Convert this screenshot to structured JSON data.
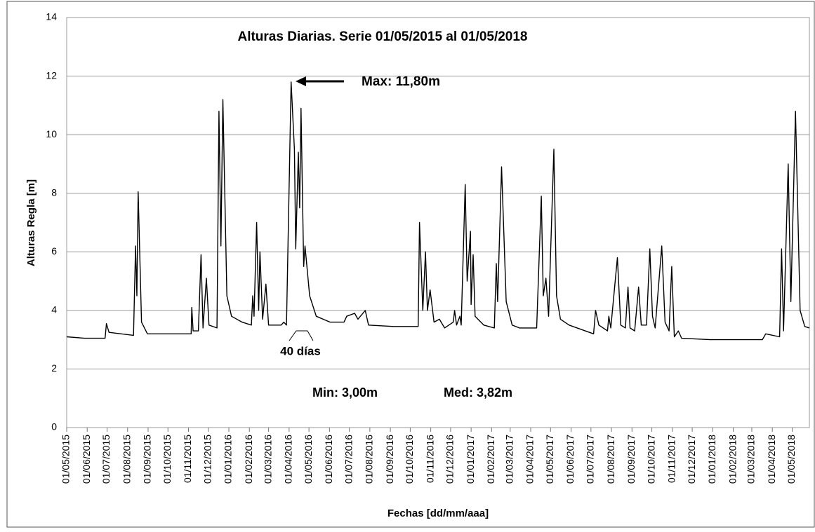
{
  "chart_data": {
    "type": "line",
    "title": "Alturas Diarias. Serie 01/05/2015 al 01/05/2018",
    "x_label": "Fechas [dd/mm/aaa]",
    "y_label": "Alturas Regla [m]",
    "annotations": {
      "max": "Max: 11,80m",
      "min": "Min: 3,00m",
      "med": "Med: 3,82m",
      "window": "40 días"
    },
    "color": "#000000",
    "grid": true,
    "ylim": [
      0,
      14
    ],
    "yticks": [
      0,
      2,
      4,
      6,
      8,
      10,
      12,
      14
    ],
    "xlim": [
      "2015-05-01",
      "2018-05-27"
    ],
    "xticks": [
      {
        "value": "2015-05-01",
        "label": "01/05/2015"
      },
      {
        "value": "2015-06-01",
        "label": "01/06/2015"
      },
      {
        "value": "2015-07-01",
        "label": "01/07/2015"
      },
      {
        "value": "2015-08-01",
        "label": "01/08/2015"
      },
      {
        "value": "2015-09-01",
        "label": "01/09/2015"
      },
      {
        "value": "2015-10-01",
        "label": "01/10/2015"
      },
      {
        "value": "2015-11-01",
        "label": "01/11/2015"
      },
      {
        "value": "2015-12-01",
        "label": "01/12/2015"
      },
      {
        "value": "2016-01-01",
        "label": "01/01/2016"
      },
      {
        "value": "2016-02-01",
        "label": "01/02/2016"
      },
      {
        "value": "2016-03-01",
        "label": "01/03/2016"
      },
      {
        "value": "2016-04-01",
        "label": "01/04/2016"
      },
      {
        "value": "2016-05-01",
        "label": "01/05/2016"
      },
      {
        "value": "2016-06-01",
        "label": "01/06/2016"
      },
      {
        "value": "2016-07-01",
        "label": "01/07/2016"
      },
      {
        "value": "2016-08-01",
        "label": "01/08/2016"
      },
      {
        "value": "2016-09-01",
        "label": "01/09/2016"
      },
      {
        "value": "2016-10-01",
        "label": "01/10/2016"
      },
      {
        "value": "2016-11-01",
        "label": "01/11/2016"
      },
      {
        "value": "2016-12-01",
        "label": "01/12/2016"
      },
      {
        "value": "2017-01-01",
        "label": "01/01/2017"
      },
      {
        "value": "2017-02-01",
        "label": "01/02/2017"
      },
      {
        "value": "2017-03-01",
        "label": "01/03/2017"
      },
      {
        "value": "2017-04-01",
        "label": "01/04/2017"
      },
      {
        "value": "2017-05-01",
        "label": "01/05/2017"
      },
      {
        "value": "2017-06-01",
        "label": "01/06/2017"
      },
      {
        "value": "2017-07-01",
        "label": "01/07/2017"
      },
      {
        "value": "2017-08-01",
        "label": "01/08/2017"
      },
      {
        "value": "2017-09-01",
        "label": "01/09/2017"
      },
      {
        "value": "2017-10-01",
        "label": "01/10/2017"
      },
      {
        "value": "2017-11-01",
        "label": "01/11/2017"
      },
      {
        "value": "2017-12-01",
        "label": "01/12/2017"
      },
      {
        "value": "2018-01-01",
        "label": "01/01/2018"
      },
      {
        "value": "2018-02-01",
        "label": "01/02/2018"
      },
      {
        "value": "2018-03-01",
        "label": "01/03/2018"
      },
      {
        "value": "2018-04-01",
        "label": "01/04/2018"
      },
      {
        "value": "2018-05-01",
        "label": "01/05/2018"
      }
    ],
    "x": [
      "2015-05-01",
      "2015-05-28",
      "2015-06-28",
      "2015-06-30",
      "2015-07-04",
      "2015-08-10",
      "2015-08-13",
      "2015-08-15",
      "2015-08-17",
      "2015-08-22",
      "2015-08-31",
      "2015-11-05",
      "2015-11-06",
      "2015-11-08",
      "2015-11-16",
      "2015-11-20",
      "2015-11-23",
      "2015-11-28",
      "2015-12-02",
      "2015-12-14",
      "2015-12-17",
      "2015-12-20",
      "2015-12-23",
      "2015-12-29",
      "2016-01-05",
      "2016-01-21",
      "2016-02-04",
      "2016-02-06",
      "2016-02-08",
      "2016-02-12",
      "2016-02-15",
      "2016-02-17",
      "2016-02-21",
      "2016-02-26",
      "2016-03-01",
      "2016-03-20",
      "2016-03-24",
      "2016-03-28",
      "2016-04-04",
      "2016-04-09",
      "2016-04-11",
      "2016-04-15",
      "2016-04-17",
      "2016-04-19",
      "2016-04-23",
      "2016-04-25",
      "2016-05-02",
      "2016-05-12",
      "2016-06-02",
      "2016-06-23",
      "2016-06-27",
      "2016-07-09",
      "2016-07-14",
      "2016-07-25",
      "2016-07-30",
      "2016-09-06",
      "2016-10-13",
      "2016-10-15",
      "2016-10-20",
      "2016-10-24",
      "2016-10-27",
      "2016-10-31",
      "2016-11-06",
      "2016-11-14",
      "2016-11-22",
      "2016-12-05",
      "2016-12-07",
      "2016-12-10",
      "2016-12-15",
      "2016-12-17",
      "2016-12-23",
      "2016-12-26",
      "2016-12-31",
      "2017-01-01",
      "2017-01-04",
      "2017-01-07",
      "2017-01-20",
      "2017-02-05",
      "2017-02-08",
      "2017-02-10",
      "2017-02-16",
      "2017-02-23",
      "2017-03-04",
      "2017-03-15",
      "2017-04-10",
      "2017-04-17",
      "2017-04-20",
      "2017-04-24",
      "2017-04-28",
      "2017-05-06",
      "2017-05-10",
      "2017-05-16",
      "2017-05-29",
      "2017-07-05",
      "2017-07-08",
      "2017-07-13",
      "2017-07-26",
      "2017-07-28",
      "2017-07-31",
      "2017-08-10",
      "2017-08-15",
      "2017-08-22",
      "2017-08-26",
      "2017-08-29",
      "2017-09-05",
      "2017-09-11",
      "2017-09-15",
      "2017-09-23",
      "2017-09-28",
      "2017-10-02",
      "2017-10-06",
      "2017-10-16",
      "2017-10-21",
      "2017-10-27",
      "2017-10-31",
      "2017-11-04",
      "2017-11-10",
      "2017-11-15",
      "2017-12-28",
      "2018-03-17",
      "2018-03-22",
      "2018-04-12",
      "2018-04-15",
      "2018-04-18",
      "2018-04-25",
      "2018-04-29",
      "2018-05-06",
      "2018-05-13",
      "2018-05-20",
      "2018-05-27"
    ],
    "values": [
      3.1,
      3.05,
      3.05,
      3.55,
      3.25,
      3.15,
      6.2,
      4.5,
      8.05,
      3.6,
      3.2,
      3.2,
      4.1,
      3.3,
      3.3,
      5.9,
      3.4,
      5.1,
      3.5,
      3.4,
      10.8,
      6.2,
      11.2,
      4.5,
      3.8,
      3.6,
      3.5,
      4.5,
      3.8,
      7.0,
      4.0,
      6.0,
      3.7,
      4.9,
      3.5,
      3.5,
      3.6,
      3.5,
      11.8,
      9.5,
      6.1,
      9.4,
      7.5,
      10.9,
      5.5,
      6.2,
      4.5,
      3.8,
      3.6,
      3.6,
      3.8,
      3.9,
      3.7,
      4.0,
      3.5,
      3.45,
      3.45,
      7.0,
      4.0,
      6.0,
      4.0,
      4.7,
      3.6,
      3.7,
      3.4,
      3.6,
      4.0,
      3.5,
      3.8,
      3.5,
      8.3,
      5.0,
      6.7,
      4.2,
      5.9,
      3.8,
      3.5,
      3.4,
      5.6,
      4.3,
      8.9,
      4.3,
      3.5,
      3.4,
      3.4,
      7.9,
      4.5,
      5.1,
      3.8,
      9.5,
      4.5,
      3.7,
      3.5,
      3.2,
      4.0,
      3.5,
      3.3,
      3.8,
      3.4,
      5.8,
      3.5,
      3.4,
      4.8,
      3.4,
      3.3,
      4.8,
      3.5,
      3.5,
      6.1,
      3.8,
      3.4,
      6.2,
      3.6,
      3.3,
      5.5,
      3.1,
      3.3,
      3.05,
      3.0,
      3.0,
      3.2,
      3.1,
      6.1,
      3.3,
      9.0,
      4.3,
      10.8,
      4.0,
      3.45,
      3.4
    ]
  }
}
